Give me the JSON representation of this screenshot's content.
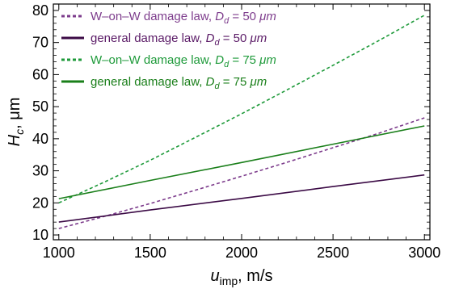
{
  "chart_data": {
    "type": "line",
    "xlabel_symbol": "u",
    "xlabel_subscript": "imp",
    "xlabel_unit": ", m/s",
    "ylabel_symbol": "H",
    "ylabel_subscript": "c",
    "ylabel_unit": ", μm",
    "xlim": [
      970,
      3030
    ],
    "ylim": [
      8.5,
      82
    ],
    "x_ticks": [
      1000,
      1500,
      2000,
      2500,
      3000
    ],
    "y_ticks": [
      10,
      20,
      30,
      40,
      50,
      60,
      70,
      80
    ],
    "grid": false,
    "legend_position": "top-left",
    "series": [
      {
        "name": "W–on–W damage law, D_d = 50 μm",
        "label_prefix": "W–on–W damage law, ",
        "label_symbol": "D",
        "label_subscript": "d",
        "label_value": " = 50 ",
        "label_unit": "μm",
        "color": "#7d3c8c",
        "text_color": "#7d3c8c",
        "dashed": true,
        "x": [
          1000,
          1250,
          1500,
          1750,
          2000,
          2250,
          2500,
          2750,
          3000
        ],
        "y": [
          12,
          15.8,
          19.8,
          24,
          28.3,
          32.7,
          37.2,
          41.7,
          46.5
        ]
      },
      {
        "name": "general damage law, D_d = 50 μm",
        "label_prefix": "general damage law, ",
        "label_symbol": "D",
        "label_subscript": "d",
        "label_value": " = 50 ",
        "label_unit": "μm",
        "color": "#3b0a45",
        "text_color": "#5a1a66",
        "dashed": false,
        "x": [
          1000,
          1500,
          2000,
          2500,
          3000
        ],
        "y": [
          14,
          17.8,
          21.4,
          25.1,
          28.7
        ]
      },
      {
        "name": "W–on–W damage law, D_d = 75 μm",
        "label_prefix": "W–on–W damage law, ",
        "label_symbol": "D",
        "label_subscript": "d",
        "label_value": " = 75 ",
        "label_unit": "μm",
        "color": "#1e9a3a",
        "text_color": "#1e9a3a",
        "dashed": true,
        "x": [
          1000,
          1250,
          1500,
          1750,
          2000,
          2250,
          2500,
          2750,
          3000
        ],
        "y": [
          20,
          26.5,
          33.3,
          40.5,
          47.8,
          55.3,
          62.9,
          70.6,
          78.5
        ]
      },
      {
        "name": "general damage law, D_d = 75 μm",
        "label_prefix": "general damage law, ",
        "label_symbol": "D",
        "label_subscript": "d",
        "label_value": " = 75 ",
        "label_unit": "μm",
        "color": "#1a7f1a",
        "text_color": "#1a7f1a",
        "dashed": false,
        "x": [
          1000,
          1500,
          2000,
          2500,
          3000
        ],
        "y": [
          21.3,
          27,
          32.6,
          38.3,
          44
        ]
      }
    ]
  }
}
